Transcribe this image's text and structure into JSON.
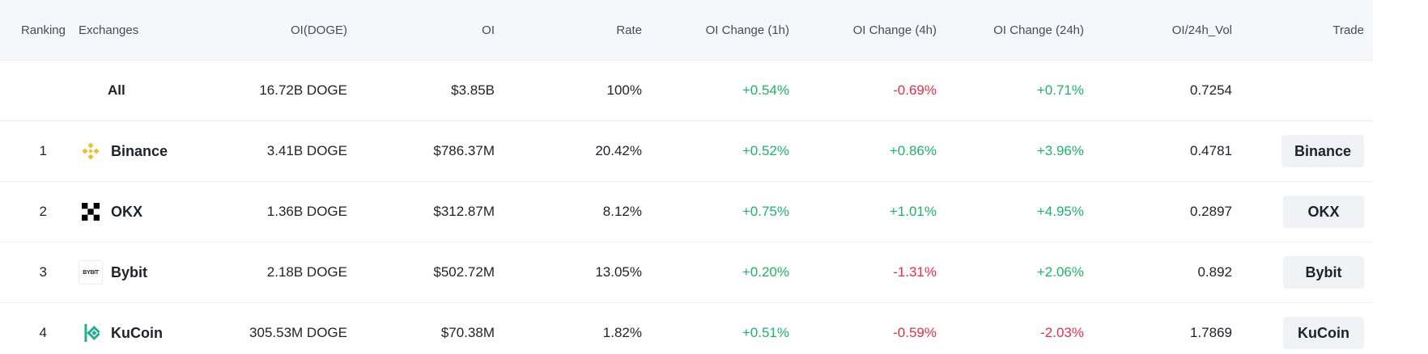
{
  "table": {
    "headers": {
      "ranking": "Ranking",
      "exchanges": "Exchanges",
      "oi_doge": "OI(DOGE)",
      "oi": "OI",
      "rate": "Rate",
      "oi_change_1h": "OI Change (1h)",
      "oi_change_4h": "OI Change (4h)",
      "oi_change_24h": "OI Change (24h)",
      "oi_24h_vol": "OI/24h_Vol",
      "trade": "Trade"
    },
    "summary": {
      "label": "All",
      "oi_doge": "16.72B DOGE",
      "oi": "$3.85B",
      "rate": "100%",
      "oi_change_1h": "+0.54%",
      "oi_change_4h": "-0.69%",
      "oi_change_24h": "+0.71%",
      "oi_24h_vol": "0.7254"
    },
    "rows": [
      {
        "rank": "1",
        "exchange": "Binance",
        "logo_icon": "binance-logo-icon",
        "oi_doge": "3.41B DOGE",
        "oi": "$786.37M",
        "rate": "20.42%",
        "oi_change_1h": "+0.52%",
        "oi_change_4h": "+0.86%",
        "oi_change_24h": "+3.96%",
        "oi_24h_vol": "0.4781",
        "trade_label": "Binance"
      },
      {
        "rank": "2",
        "exchange": "OKX",
        "logo_icon": "okx-logo-icon",
        "oi_doge": "1.36B DOGE",
        "oi": "$312.87M",
        "rate": "8.12%",
        "oi_change_1h": "+0.75%",
        "oi_change_4h": "+1.01%",
        "oi_change_24h": "+4.95%",
        "oi_24h_vol": "0.2897",
        "trade_label": "OKX"
      },
      {
        "rank": "3",
        "exchange": "Bybit",
        "logo_icon": "bybit-logo-icon",
        "logo_text": "BYBIT",
        "oi_doge": "2.18B DOGE",
        "oi": "$502.72M",
        "rate": "13.05%",
        "oi_change_1h": "+0.20%",
        "oi_change_4h": "-1.31%",
        "oi_change_24h": "+2.06%",
        "oi_24h_vol": "0.892",
        "trade_label": "Bybit"
      },
      {
        "rank": "4",
        "exchange": "KuCoin",
        "logo_icon": "kucoin-logo-icon",
        "oi_doge": "305.53M DOGE",
        "oi": "$70.38M",
        "rate": "1.82%",
        "oi_change_1h": "+0.51%",
        "oi_change_4h": "-0.59%",
        "oi_change_24h": "-2.03%",
        "oi_24h_vol": "1.7869",
        "trade_label": "KuCoin"
      }
    ]
  },
  "colors": {
    "positive": "#20b26c",
    "negative": "#e0304a",
    "binance": "#f3ba2f",
    "kucoin": "#23af91",
    "header_bg": "#f5f7fa",
    "button_bg": "#f0f2f5"
  }
}
